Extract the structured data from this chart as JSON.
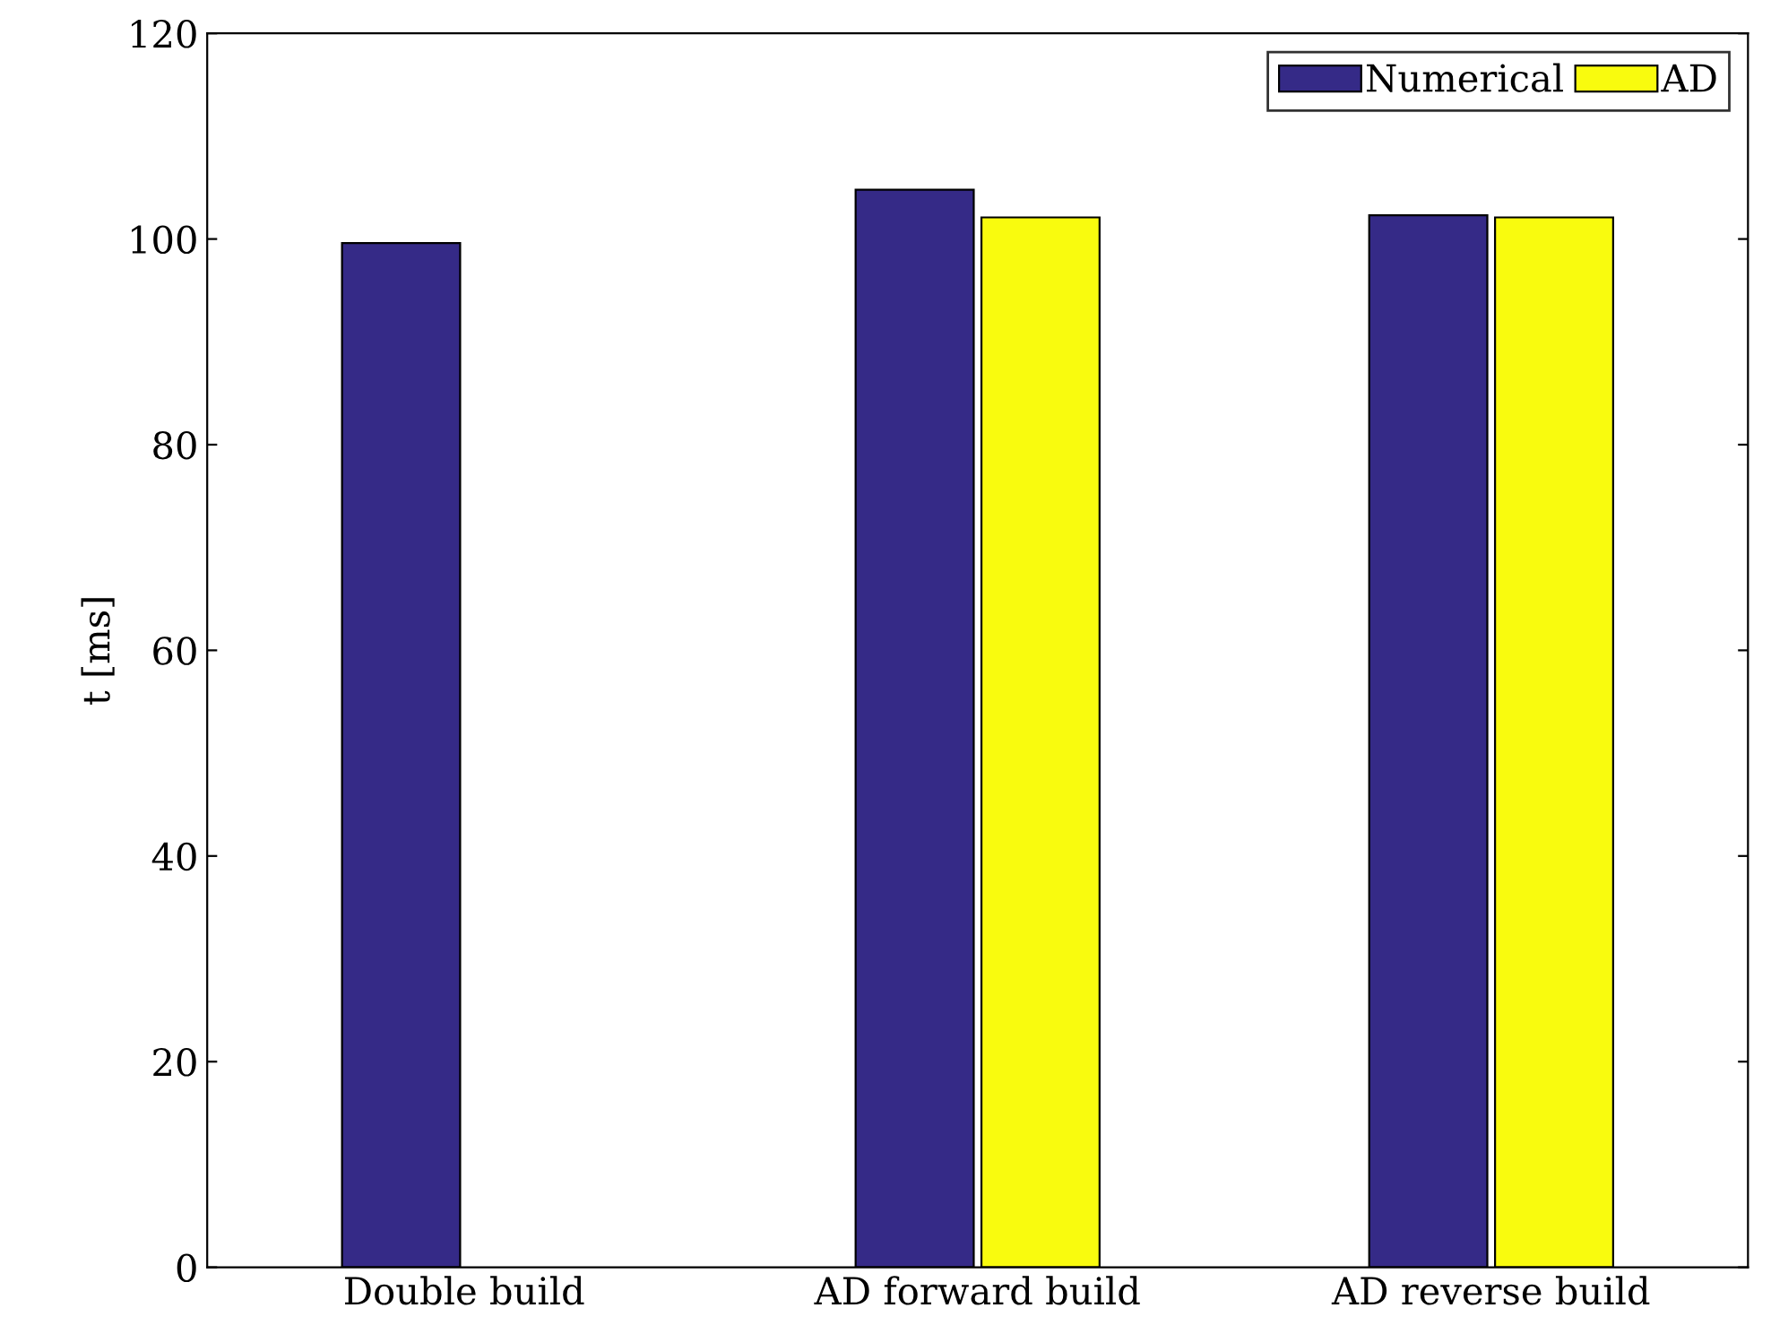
{
  "chart_data": {
    "type": "bar",
    "ylabel": "t [ms]",
    "categories": [
      "Double build",
      "AD forward build",
      "AD reverse build"
    ],
    "series": [
      {
        "name": "Numerical",
        "color": "#352a87",
        "values": [
          99.6,
          104.8,
          102.3
        ]
      },
      {
        "name": "AD",
        "color": "#f9fb0e",
        "values": [
          null,
          102.1,
          102.1
        ]
      }
    ],
    "ylim": [
      0,
      120
    ],
    "yticks": [
      0,
      20,
      40,
      60,
      80,
      100,
      120
    ],
    "grid": false,
    "legend": "top right"
  }
}
